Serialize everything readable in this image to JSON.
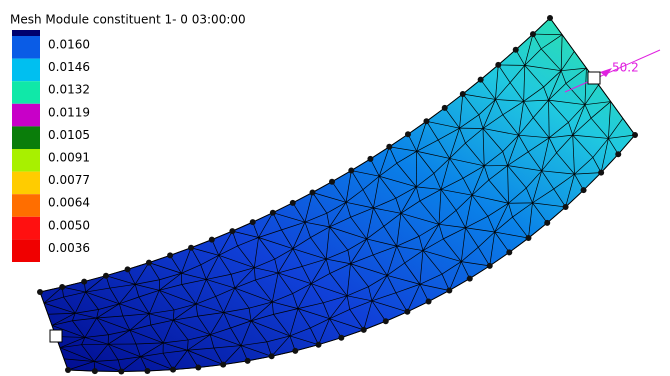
{
  "title": "Mesh Module constituent 1- 0 03:00:00",
  "legend": [
    {
      "label": "0.0160",
      "color": "#0a5ce6"
    },
    {
      "label": "0.0146",
      "color": "#00bff0"
    },
    {
      "label": "0.0132",
      "color": "#10e8a8"
    },
    {
      "label": "0.0119",
      "color": "#c800c8"
    },
    {
      "label": "0.0105",
      "color": "#0a7d0a"
    },
    {
      "label": "0.0091",
      "color": "#a8f000"
    },
    {
      "label": "0.0077",
      "color": "#ffcc00"
    },
    {
      "label": "0.0064",
      "color": "#ff6e00"
    },
    {
      "label": "0.0050",
      "color": "#ff1010"
    },
    {
      "label": "0.0036",
      "color": "#f00000"
    }
  ],
  "annotation": "50.2"
}
